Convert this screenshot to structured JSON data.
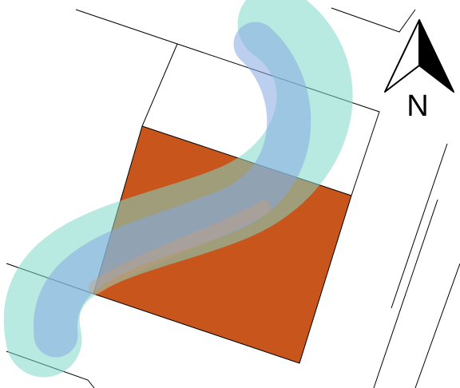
{
  "north_label": "N"
}
